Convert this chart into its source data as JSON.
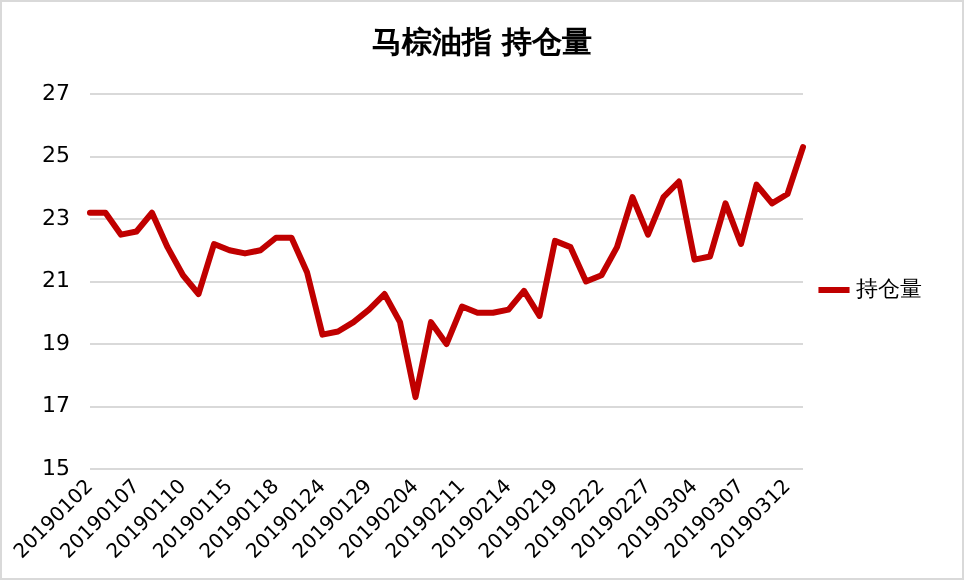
{
  "chart_data": {
    "type": "line",
    "title": "马棕油指 持仓量",
    "categories": [
      "20190102",
      null,
      null,
      "20190107",
      null,
      null,
      "20190110",
      null,
      null,
      "20190115",
      null,
      null,
      "20190118",
      null,
      null,
      "20190124",
      null,
      null,
      "20190129",
      null,
      null,
      "20190204",
      null,
      null,
      "20190211",
      null,
      null,
      "20190214",
      null,
      null,
      "20190219",
      null,
      null,
      "20190222",
      null,
      null,
      "20190227",
      null,
      null,
      "20190304",
      null,
      null,
      "20190307",
      null,
      null,
      "20190312",
      null
    ],
    "series": [
      {
        "name": "持仓量",
        "color": "#c00000",
        "values": [
          23.2,
          23.2,
          22.5,
          22.6,
          23.2,
          22.1,
          21.2,
          20.6,
          22.2,
          22.0,
          21.9,
          22.0,
          22.4,
          22.4,
          21.3,
          19.3,
          19.4,
          19.7,
          20.1,
          20.6,
          19.7,
          17.3,
          19.7,
          19.0,
          20.2,
          20.0,
          20.0,
          20.1,
          20.7,
          19.9,
          22.3,
          22.1,
          21.0,
          21.2,
          22.1,
          23.7,
          22.5,
          23.7,
          24.2,
          21.7,
          21.8,
          23.5,
          22.2,
          24.1,
          23.5,
          23.8,
          25.3
        ]
      }
    ],
    "ylim": [
      15,
      27
    ],
    "yticks": [
      15,
      17,
      19,
      21,
      23,
      25,
      27
    ],
    "grid": "y",
    "legend": "right",
    "marker": "none",
    "line_style": "solid"
  }
}
